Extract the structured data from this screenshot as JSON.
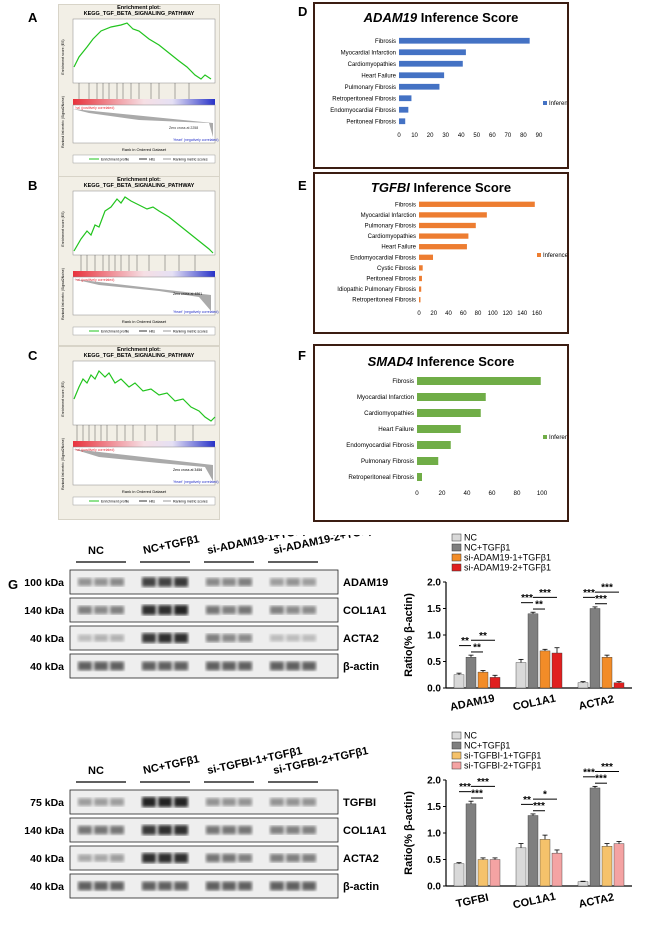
{
  "panels": {
    "A": "A",
    "B": "B",
    "C": "C",
    "D": "D",
    "E": "E",
    "F": "F",
    "G": "G"
  },
  "gsea": {
    "plot_title": "Enrichment plot:",
    "pathway": "KEGG_TGF_BETA_SIGNALING_PATHWAY",
    "y_top": "Enrichment score (ES)",
    "y_bottom": "Ranked list metric (Signal2Noise)",
    "x_label": "Rank in Ordered Dataset",
    "pos_label": "'na' (positively correlated)",
    "neg_label": "'Heart' (negatively correlated)",
    "legend_profile": "Enrichment profile",
    "legend_hits": "Hits",
    "legend_ranking": "Ranking metric scores",
    "zero_a": "Zero cross at 2258",
    "zero_b": "Zero cross at 4861",
    "zero_c": "Zero cross at 3456",
    "colors": {
      "curve": "#22c41e",
      "pos": "#e8323c",
      "neg": "#2732c8"
    }
  },
  "inference": {
    "D": {
      "gene": "ADAM19",
      "suffix": "Inference Score",
      "legend": "Inference Score",
      "color": "#4472c4",
      "chart_data": {
        "type": "bar",
        "categories": [
          "Fibrosis",
          "Myocardial Infarction",
          "Cardiomyopathies",
          "Heart Failure",
          "Pulmonary Fibrosis",
          "Retroperitoneal Fibrosis",
          "Endomyocardial Fibrosis",
          "Peritoneal Fibrosis"
        ],
        "values": [
          84,
          43,
          41,
          29,
          26,
          8,
          6,
          4
        ],
        "xlim": [
          0,
          90
        ],
        "ticks": [
          "0",
          "10",
          "20",
          "30",
          "40",
          "50",
          "60",
          "70",
          "80",
          "90"
        ]
      }
    },
    "E": {
      "gene": "TGFBI",
      "suffix": "Inference Score",
      "legend": "Inference Score",
      "color": "#ed7d31",
      "chart_data": {
        "type": "bar",
        "categories": [
          "Fibrosis",
          "Myocardial Infarction",
          "Pulmonary Fibrosis",
          "Cardiomyopathies",
          "Heart Failure",
          "Endomyocardial Fibrosis",
          "Cystic Fibrosis",
          "Peritoneal Fibrosis",
          "Idiopathic Pulmonary Fibrosis",
          "Retroperitoneal Fibrosis"
        ],
        "values": [
          157,
          92,
          77,
          67,
          65,
          19,
          5,
          4,
          3,
          2
        ],
        "xlim": [
          0,
          160
        ],
        "ticks": [
          "0",
          "20",
          "40",
          "60",
          "80",
          "100",
          "120",
          "140",
          "160"
        ]
      }
    },
    "F": {
      "gene": "SMAD4",
      "suffix": "Inference Score",
      "legend": "Inference Score",
      "color": "#70ad47",
      "chart_data": {
        "type": "bar",
        "categories": [
          "Fibrosis",
          "Myocardial Infarction",
          "Cardiomyopathies",
          "Heart Failure",
          "Endomyocardial Fibrosis",
          "Pulmonary Fibrosis",
          "Retroperitoneal Fibrosis"
        ],
        "values": [
          99,
          55,
          51,
          35,
          27,
          17,
          4
        ],
        "xlim": [
          0,
          100
        ],
        "ticks": [
          "0",
          "20",
          "40",
          "60",
          "80",
          "100"
        ]
      }
    }
  },
  "blots": {
    "top": {
      "groups": [
        "NC",
        "NC+TGFβ1",
        "si-ADAM19-1+TGFβ1",
        "si-ADAM19-2+TGFβ1"
      ],
      "rows": [
        {
          "kda": "100 kDa",
          "label": "ADAM19"
        },
        {
          "kda": "140 kDa",
          "label": "COL1A1"
        },
        {
          "kda": "40 kDa",
          "label": "ACTA2"
        },
        {
          "kda": "40 kDa",
          "label": "β-actin"
        }
      ]
    },
    "bottom": {
      "groups": [
        "NC",
        "NC+TGFβ1",
        "si-TGFBI-1+TGFβ1",
        "si-TGFBI-2+TGFβ1"
      ],
      "rows": [
        {
          "kda": "75 kDa",
          "label": "TGFBI"
        },
        {
          "kda": "140 kDa",
          "label": "COL1A1"
        },
        {
          "kda": "40 kDa",
          "label": "ACTA2"
        },
        {
          "kda": "40 kDa",
          "label": "β-actin"
        }
      ]
    }
  },
  "bar_top": {
    "ylabel": "Ratio(% β-actin)",
    "legend": [
      "NC",
      "NC+TGFβ1",
      "si-ADAM19-1+TGFβ1",
      "si-ADAM19-2+TGFβ1"
    ],
    "colors": [
      "#d9d9d9",
      "#7f7f7f",
      "#f28c28",
      "#e02020"
    ],
    "chart_data": {
      "type": "bar",
      "categories": [
        "ADAM19",
        "COL1A1",
        "ACTA2"
      ],
      "series": [
        {
          "name": "NC",
          "values": [
            0.25,
            0.48,
            0.1
          ],
          "err": [
            0.03,
            0.06,
            0.02
          ]
        },
        {
          "name": "NC+TGFβ1",
          "values": [
            0.58,
            1.4,
            1.5
          ],
          "err": [
            0.04,
            0.03,
            0.03
          ]
        },
        {
          "name": "si-ADAM19-1+TGFβ1",
          "values": [
            0.3,
            0.7,
            0.58
          ],
          "err": [
            0.03,
            0.03,
            0.04
          ]
        },
        {
          "name": "si-ADAM19-2+TGFβ1",
          "values": [
            0.2,
            0.66,
            0.1
          ],
          "err": [
            0.04,
            0.1,
            0.02
          ]
        }
      ],
      "ylim": [
        0,
        2.0
      ],
      "yticks": [
        "0.0",
        "0.5",
        "1.0",
        "1.5",
        "2.0"
      ]
    },
    "sig": [
      "**",
      "**",
      "**",
      "***",
      "**",
      "***",
      "***",
      "***",
      "***"
    ]
  },
  "bar_bottom": {
    "ylabel": "Ratio(% β-actin)",
    "legend": [
      "NC",
      "NC+TGFβ1",
      "si-TGFBI-1+TGFβ1",
      "si-TGFBI-2+TGFβ1"
    ],
    "colors": [
      "#d9d9d9",
      "#7f7f7f",
      "#f5c26b",
      "#f4a3a3"
    ],
    "chart_data": {
      "type": "bar",
      "categories": [
        "TGFBI",
        "COL1A1",
        "ACTA2"
      ],
      "series": [
        {
          "name": "NC",
          "values": [
            0.42,
            0.72,
            0.08
          ],
          "err": [
            0.02,
            0.08,
            0.01
          ]
        },
        {
          "name": "NC+TGFβ1",
          "values": [
            1.55,
            1.33,
            1.85
          ],
          "err": [
            0.05,
            0.03,
            0.03
          ]
        },
        {
          "name": "si-TGFBI-1+TGFβ1",
          "values": [
            0.5,
            0.88,
            0.75
          ],
          "err": [
            0.03,
            0.08,
            0.05
          ]
        },
        {
          "name": "si-TGFBI-2+TGFβ1",
          "values": [
            0.5,
            0.62,
            0.8
          ],
          "err": [
            0.03,
            0.06,
            0.04
          ]
        }
      ],
      "ylim": [
        0,
        2.0
      ],
      "yticks": [
        "0.0",
        "0.5",
        "1.0",
        "1.5",
        "2.0"
      ]
    },
    "sig": [
      "***",
      "***",
      "***",
      "**",
      "***",
      "*",
      "***",
      "***",
      "***"
    ]
  }
}
